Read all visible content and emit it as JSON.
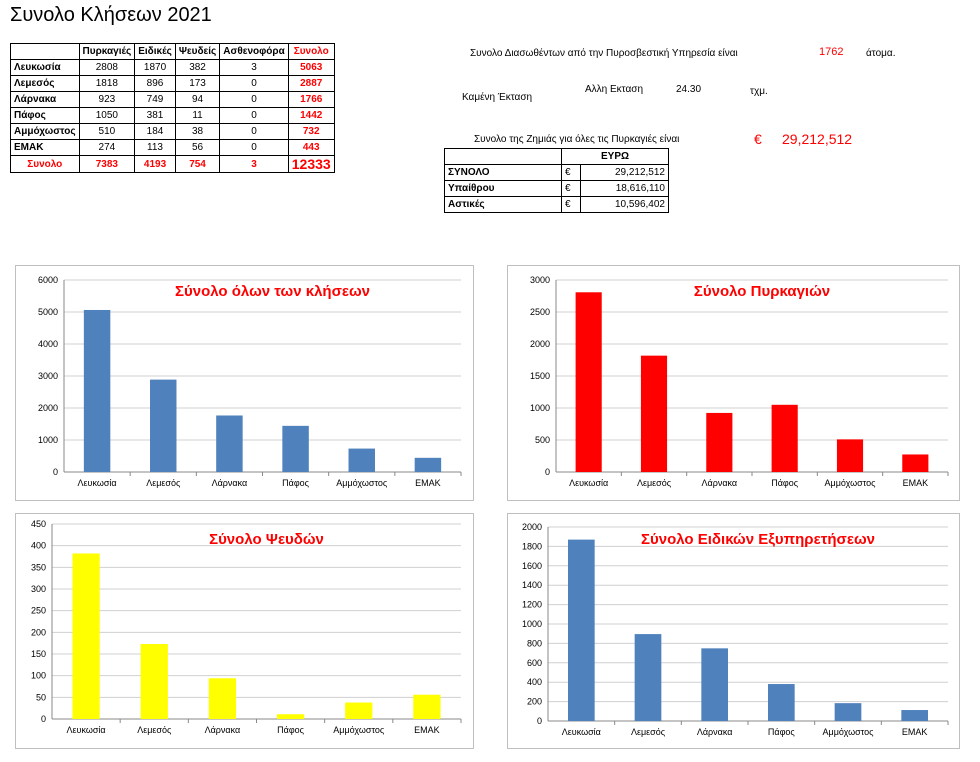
{
  "title": "Συνολο Κλήσεων 2021",
  "main_table": {
    "headers": [
      "",
      "Πυρκαγιές",
      "Ειδικές",
      "Ψευδείς",
      "Ασθενοφόρα",
      "Συνολο"
    ],
    "rows": [
      {
        "label": "Λευκωσία",
        "values": [
          "2808",
          "1870",
          "382",
          "3",
          "5063"
        ]
      },
      {
        "label": "Λεμεσός",
        "values": [
          "1818",
          "896",
          "173",
          "0",
          "2887"
        ]
      },
      {
        "label": "Λάρνακα",
        "values": [
          "923",
          "749",
          "94",
          "0",
          "1766"
        ]
      },
      {
        "label": "Πάφος",
        "values": [
          "1050",
          "381",
          "11",
          "0",
          "1442"
        ]
      },
      {
        "label": "Αμμόχωστος",
        "values": [
          "510",
          "184",
          "38",
          "0",
          "732"
        ]
      },
      {
        "label": "ΕΜΑΚ",
        "values": [
          "274",
          "113",
          "56",
          "0",
          "443"
        ]
      }
    ],
    "total": {
      "label": "Συνολο",
      "values": [
        "7383",
        "4193",
        "754",
        "3",
        "12333"
      ]
    }
  },
  "info": {
    "rescued_text": "Συνολο Διασωθέντων από την Πυροσβεστική Υπηρεσία είναι",
    "rescued_value": "1762",
    "rescued_unit": "άτομα.",
    "burnt_label": "Καμένη Έκταση",
    "other_area_label": "Αλλη Εκταση",
    "other_area_value": "24.30",
    "area_unit": "τχμ.",
    "damage_text": "Συνολο της Ζημιάς για όλες τις Πυρκαγιές είναι",
    "damage_currency": "€",
    "damage_value": "29,212,512"
  },
  "euro_table": {
    "header": "ΕΥΡΩ",
    "rows": [
      {
        "label": "ΣΥΝΟΛΟ",
        "currency": "€",
        "value": "29,212,512"
      },
      {
        "label": "Υπαίθρου",
        "currency": "€",
        "value": "18,616,110"
      },
      {
        "label": "Αστικές",
        "currency": "€",
        "value": "10,596,402"
      }
    ]
  },
  "colors": {
    "blue": "#4f81bd",
    "red": "#ff0000",
    "yellow": "#ffff00",
    "title_red": "#ff0000"
  },
  "chart_data": [
    {
      "type": "bar",
      "title": "Σύνολο όλων των κλήσεων",
      "categories": [
        "Λευκωσία",
        "Λεμεσός",
        "Λάρνακα",
        "Πάφος",
        "Αμμόχωστος",
        "ΕΜΑΚ"
      ],
      "values": [
        5063,
        2887,
        1766,
        1442,
        732,
        443
      ],
      "ylim": [
        0,
        6000
      ],
      "yticks": [
        0,
        1000,
        2000,
        3000,
        4000,
        5000,
        6000
      ],
      "color": "#4f81bd",
      "grid": true
    },
    {
      "type": "bar",
      "title": "Σύνολο Πυρκαγιών",
      "categories": [
        "Λευκωσία",
        "Λεμεσός",
        "Λάρνακα",
        "Πάφος",
        "Αμμόχωστος",
        "ΕΜΑΚ"
      ],
      "values": [
        2808,
        1818,
        923,
        1050,
        510,
        274
      ],
      "ylim": [
        0,
        3000
      ],
      "yticks": [
        0,
        500,
        1000,
        1500,
        2000,
        2500,
        3000
      ],
      "color": "#ff0000",
      "grid": true
    },
    {
      "type": "bar",
      "title": "Σύνολο Ψευδών",
      "categories": [
        "Λευκωσία",
        "Λεμεσός",
        "Λάρνακα",
        "Πάφος",
        "Αμμόχωστος",
        "ΕΜΑΚ"
      ],
      "values": [
        382,
        173,
        94,
        11,
        38,
        56
      ],
      "ylim": [
        0,
        450
      ],
      "yticks": [
        0,
        50,
        100,
        150,
        200,
        250,
        300,
        350,
        400,
        450
      ],
      "color": "#ffff00",
      "grid": true
    },
    {
      "type": "bar",
      "title": "Σύνολο Ειδικών Εξυπηρετήσεων",
      "categories": [
        "Λευκωσία",
        "Λεμεσός",
        "Λάρνακα",
        "Πάφος",
        "Αμμόχωστος",
        "ΕΜΑΚ"
      ],
      "values": [
        1870,
        896,
        749,
        381,
        184,
        113
      ],
      "ylim": [
        0,
        2000
      ],
      "yticks": [
        0,
        200,
        400,
        600,
        800,
        1000,
        1200,
        1400,
        1600,
        1800,
        2000
      ],
      "color": "#4f81bd",
      "grid": true
    }
  ]
}
